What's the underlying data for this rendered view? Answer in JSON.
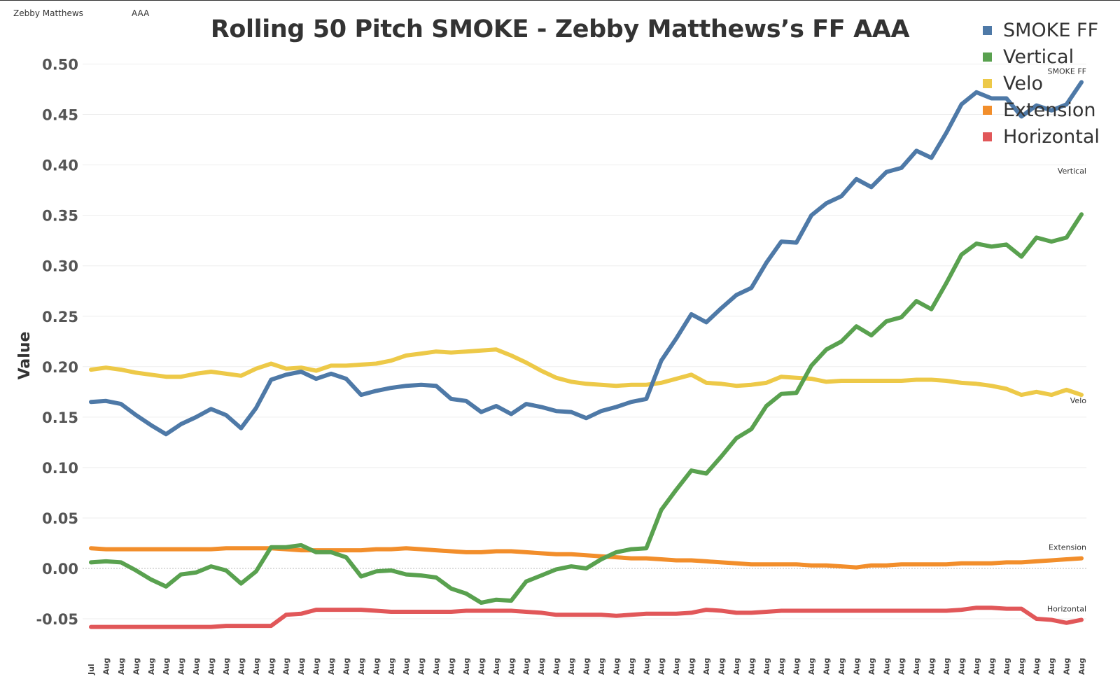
{
  "filters": {
    "pitcher": "Zebby Matthews",
    "level": "AAA"
  },
  "chart_data": {
    "type": "line",
    "title": "Rolling 50 Pitch SMOKE - Zebby Matthews’s FF AAA",
    "xlabel": "",
    "ylabel": "Value",
    "ylim": [
      -0.06,
      0.5
    ],
    "yticks": [
      "0.50",
      "0.45",
      "0.40",
      "0.35",
      "0.30",
      "0.25",
      "0.20",
      "0.15",
      "0.10",
      "0.05",
      "0.00",
      "-0.05"
    ],
    "ytick_values": [
      0.5,
      0.45,
      0.4,
      0.35,
      0.3,
      0.25,
      0.2,
      0.15,
      0.1,
      0.05,
      0.0,
      -0.05
    ],
    "zero_line": true,
    "grid": "horizontal",
    "legend_position": "top-right",
    "x": [
      "Jul",
      "Aug",
      "Aug",
      "Aug",
      "Aug",
      "Aug",
      "Aug",
      "Aug",
      "Aug",
      "Aug",
      "Aug",
      "Aug",
      "Aug",
      "Aug",
      "Aug",
      "Aug",
      "Aug",
      "Aug",
      "Aug",
      "Aug",
      "Aug",
      "Aug",
      "Aug",
      "Aug",
      "Aug",
      "Aug",
      "Aug",
      "Aug",
      "Aug",
      "Aug",
      "Aug",
      "Aug",
      "Aug",
      "Aug",
      "Aug",
      "Aug",
      "Aug",
      "Aug",
      "Aug",
      "Aug",
      "Aug",
      "Aug",
      "Aug",
      "Aug",
      "Aug",
      "Aug",
      "Aug",
      "Aug",
      "Aug",
      "Aug",
      "Aug",
      "Aug",
      "Aug",
      "Aug",
      "Aug",
      "Aug",
      "Aug",
      "Aug",
      "Aug",
      "Aug",
      "Aug",
      "Aug",
      "Aug",
      "Aug",
      "Aug",
      "Aug",
      "Aug"
    ],
    "series": [
      {
        "name": "SMOKE FF",
        "end_label": "SMOKE FF",
        "color": "#4e79a7",
        "values": [
          0.165,
          0.166,
          0.163,
          0.152,
          0.142,
          0.133,
          0.143,
          0.15,
          0.158,
          0.152,
          0.139,
          0.159,
          0.187,
          0.192,
          0.195,
          0.188,
          0.193,
          0.188,
          0.172,
          0.176,
          0.179,
          0.181,
          0.182,
          0.181,
          0.168,
          0.166,
          0.155,
          0.161,
          0.153,
          0.163,
          0.16,
          0.156,
          0.155,
          0.149,
          0.156,
          0.16,
          0.165,
          0.168,
          0.206,
          0.228,
          0.252,
          0.244,
          0.258,
          0.271,
          0.278,
          0.303,
          0.324,
          0.323,
          0.35,
          0.362,
          0.369,
          0.386,
          0.378,
          0.393,
          0.397,
          0.414,
          0.407,
          0.432,
          0.46,
          0.472,
          0.466,
          0.466,
          0.448,
          0.459,
          0.454,
          0.46,
          0.482
        ]
      },
      {
        "name": "Vertical",
        "end_label": "Vertical",
        "color": "#59a14f",
        "values": [
          0.006,
          0.007,
          0.006,
          -0.002,
          -0.011,
          -0.018,
          -0.006,
          -0.004,
          0.002,
          -0.002,
          -0.015,
          -0.003,
          0.021,
          0.021,
          0.023,
          0.016,
          0.016,
          0.011,
          -0.008,
          -0.003,
          -0.002,
          -0.006,
          -0.007,
          -0.009,
          -0.02,
          -0.025,
          -0.034,
          -0.031,
          -0.032,
          -0.013,
          -0.007,
          -0.001,
          0.002,
          0.0,
          0.009,
          0.016,
          0.019,
          0.02,
          0.058,
          0.078,
          0.097,
          0.094,
          0.111,
          0.129,
          0.138,
          0.161,
          0.173,
          0.174,
          0.201,
          0.217,
          0.225,
          0.24,
          0.231,
          0.245,
          0.249,
          0.265,
          0.257,
          0.283,
          0.311,
          0.322,
          0.319,
          0.321,
          0.309,
          0.328,
          0.324,
          0.328,
          0.351
        ]
      },
      {
        "name": "Velo",
        "end_label": "Velo",
        "color": "#edc948",
        "values": [
          0.197,
          0.199,
          0.197,
          0.194,
          0.192,
          0.19,
          0.19,
          0.193,
          0.195,
          0.193,
          0.191,
          0.198,
          0.203,
          0.198,
          0.199,
          0.196,
          0.201,
          0.201,
          0.202,
          0.203,
          0.206,
          0.211,
          0.213,
          0.215,
          0.214,
          0.215,
          0.216,
          0.217,
          0.211,
          0.204,
          0.196,
          0.189,
          0.185,
          0.183,
          0.182,
          0.181,
          0.182,
          0.182,
          0.184,
          0.188,
          0.192,
          0.184,
          0.183,
          0.181,
          0.182,
          0.184,
          0.19,
          0.189,
          0.188,
          0.185,
          0.186,
          0.186,
          0.186,
          0.186,
          0.186,
          0.187,
          0.187,
          0.186,
          0.184,
          0.183,
          0.181,
          0.178,
          0.172,
          0.175,
          0.172,
          0.177,
          0.172
        ]
      },
      {
        "name": "Extension",
        "end_label": "Extension",
        "color": "#f28e2b",
        "values": [
          0.02,
          0.019,
          0.019,
          0.019,
          0.019,
          0.019,
          0.019,
          0.019,
          0.019,
          0.02,
          0.02,
          0.02,
          0.02,
          0.019,
          0.018,
          0.018,
          0.018,
          0.018,
          0.018,
          0.019,
          0.019,
          0.02,
          0.019,
          0.018,
          0.017,
          0.016,
          0.016,
          0.017,
          0.017,
          0.016,
          0.015,
          0.014,
          0.014,
          0.013,
          0.012,
          0.011,
          0.01,
          0.01,
          0.009,
          0.008,
          0.008,
          0.007,
          0.006,
          0.005,
          0.004,
          0.004,
          0.004,
          0.004,
          0.003,
          0.003,
          0.002,
          0.001,
          0.003,
          0.003,
          0.004,
          0.004,
          0.004,
          0.004,
          0.005,
          0.005,
          0.005,
          0.006,
          0.006,
          0.007,
          0.008,
          0.009,
          0.01
        ]
      },
      {
        "name": "Horizontal",
        "end_label": "Horizontal",
        "color": "#e15759",
        "values": [
          -0.058,
          -0.058,
          -0.058,
          -0.058,
          -0.058,
          -0.058,
          -0.058,
          -0.058,
          -0.058,
          -0.057,
          -0.057,
          -0.057,
          -0.057,
          -0.046,
          -0.045,
          -0.041,
          -0.041,
          -0.041,
          -0.041,
          -0.042,
          -0.043,
          -0.043,
          -0.043,
          -0.043,
          -0.043,
          -0.042,
          -0.042,
          -0.042,
          -0.042,
          -0.043,
          -0.044,
          -0.046,
          -0.046,
          -0.046,
          -0.046,
          -0.047,
          -0.046,
          -0.045,
          -0.045,
          -0.045,
          -0.044,
          -0.041,
          -0.042,
          -0.044,
          -0.044,
          -0.043,
          -0.042,
          -0.042,
          -0.042,
          -0.042,
          -0.042,
          -0.042,
          -0.042,
          -0.042,
          -0.042,
          -0.042,
          -0.042,
          -0.042,
          -0.041,
          -0.039,
          -0.039,
          -0.04,
          -0.04,
          -0.05,
          -0.051,
          -0.054,
          -0.051
        ]
      }
    ]
  }
}
